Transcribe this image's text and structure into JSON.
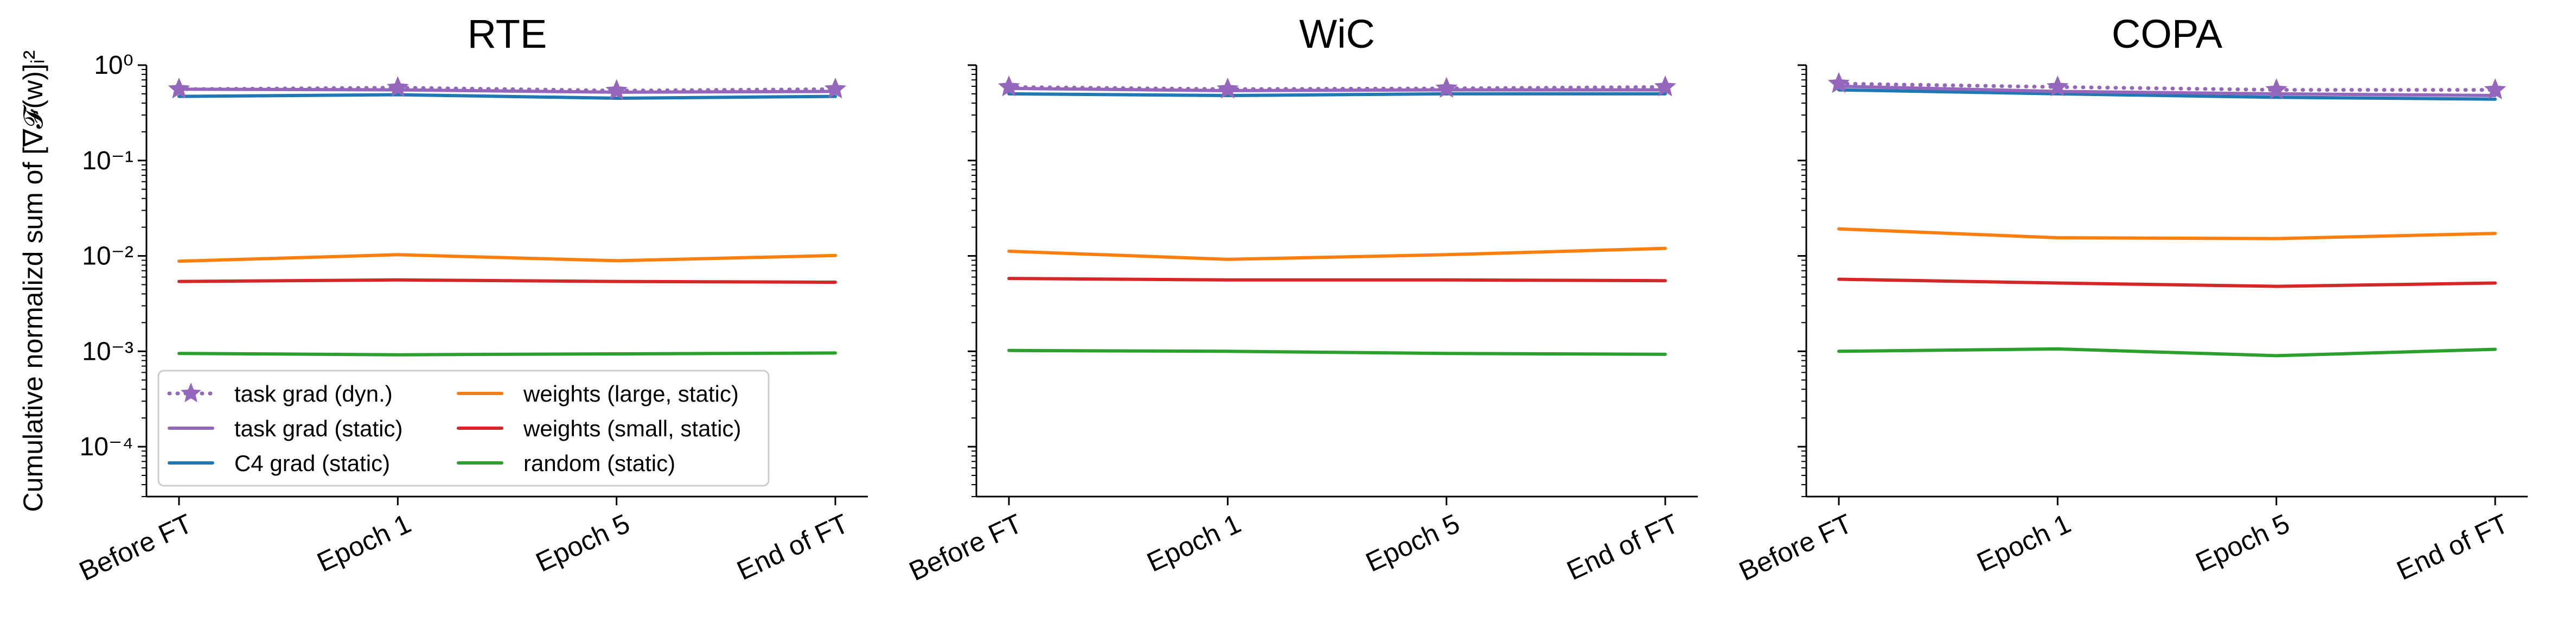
{
  "chart_data": [
    {
      "type": "line",
      "title": "RTE",
      "xlabel": "",
      "ylabel": "Cumulative normalizd sum of [∇𝓕(w)]ᵢ²",
      "categories": [
        "Before FT",
        "Epoch 1",
        "Epoch 5",
        "End of FT"
      ],
      "yscale": "log",
      "ylim": [
        3e-05,
        1.0
      ],
      "yticks": [
        0.0001,
        0.001,
        0.01,
        0.1,
        1.0
      ],
      "ytick_labels": [
        "10⁻⁴",
        "10⁻³",
        "10⁻²",
        "10⁻¹",
        "10⁰"
      ],
      "grid": false,
      "legend": "lower-left",
      "series": [
        {
          "name": "task grad (dyn.)",
          "color": "#9467bd",
          "style": "dotted-star",
          "values": [
            0.56,
            0.58,
            0.54,
            0.56
          ]
        },
        {
          "name": "task grad (static)",
          "color": "#9467bd",
          "style": "solid",
          "values": [
            0.56,
            0.55,
            0.52,
            0.53
          ]
        },
        {
          "name": "C4 grad (static)",
          "color": "#1f77b4",
          "style": "solid",
          "values": [
            0.47,
            0.49,
            0.45,
            0.47
          ]
        },
        {
          "name": "weights (large, static)",
          "color": "#ff7f0e",
          "style": "solid",
          "values": [
            0.0088,
            0.0103,
            0.0089,
            0.0101
          ]
        },
        {
          "name": "weights (small, static)",
          "color": "#d62728",
          "style": "solid",
          "values": [
            0.0054,
            0.0056,
            0.0054,
            0.0053
          ]
        },
        {
          "name": "random (static)",
          "color": "#2ca02c",
          "style": "solid",
          "values": [
            0.00095,
            0.00092,
            0.00094,
            0.00096
          ]
        }
      ]
    },
    {
      "type": "line",
      "title": "WiC",
      "categories": [
        "Before FT",
        "Epoch 1",
        "Epoch 5",
        "End of FT"
      ],
      "yscale": "log",
      "ylim": [
        3e-05,
        1.0
      ],
      "yticks": [
        0.0001,
        0.001,
        0.01,
        0.1,
        1.0
      ],
      "ytick_labels": [
        "",
        "",
        "",
        "",
        ""
      ],
      "grid": false,
      "series": [
        {
          "name": "task grad (dyn.)",
          "color": "#9467bd",
          "style": "dotted-star",
          "values": [
            0.59,
            0.56,
            0.57,
            0.59
          ]
        },
        {
          "name": "task grad (static)",
          "color": "#9467bd",
          "style": "solid",
          "values": [
            0.57,
            0.54,
            0.55,
            0.55
          ]
        },
        {
          "name": "C4 grad (static)",
          "color": "#1f77b4",
          "style": "solid",
          "values": [
            0.5,
            0.48,
            0.5,
            0.5
          ]
        },
        {
          "name": "weights (large, static)",
          "color": "#ff7f0e",
          "style": "solid",
          "values": [
            0.0112,
            0.0092,
            0.0103,
            0.012
          ]
        },
        {
          "name": "weights (small, static)",
          "color": "#d62728",
          "style": "solid",
          "values": [
            0.0058,
            0.0056,
            0.0056,
            0.0055
          ]
        },
        {
          "name": "random (static)",
          "color": "#2ca02c",
          "style": "solid",
          "values": [
            0.00102,
            0.001,
            0.00095,
            0.00093
          ]
        }
      ]
    },
    {
      "type": "line",
      "title": "COPA",
      "categories": [
        "Before FT",
        "Epoch 1",
        "Epoch 5",
        "End of FT"
      ],
      "yscale": "log",
      "ylim": [
        3e-05,
        1.0
      ],
      "yticks": [
        0.0001,
        0.001,
        0.01,
        0.1,
        1.0
      ],
      "ytick_labels": [
        "",
        "",
        "",
        "",
        ""
      ],
      "grid": false,
      "series": [
        {
          "name": "task grad (dyn.)",
          "color": "#9467bd",
          "style": "dotted-star",
          "values": [
            0.64,
            0.59,
            0.55,
            0.55
          ]
        },
        {
          "name": "task grad (static)",
          "color": "#9467bd",
          "style": "solid",
          "values": [
            0.6,
            0.53,
            0.5,
            0.48
          ]
        },
        {
          "name": "C4 grad (static)",
          "color": "#1f77b4",
          "style": "solid",
          "values": [
            0.55,
            0.5,
            0.46,
            0.44
          ]
        },
        {
          "name": "weights (large, static)",
          "color": "#ff7f0e",
          "style": "solid",
          "values": [
            0.0192,
            0.0155,
            0.0152,
            0.0172
          ]
        },
        {
          "name": "weights (small, static)",
          "color": "#d62728",
          "style": "solid",
          "values": [
            0.0057,
            0.0052,
            0.0048,
            0.0052
          ]
        },
        {
          "name": "random (static)",
          "color": "#2ca02c",
          "style": "solid",
          "values": [
            0.001,
            0.00106,
            0.0009,
            0.00105
          ]
        }
      ]
    }
  ]
}
